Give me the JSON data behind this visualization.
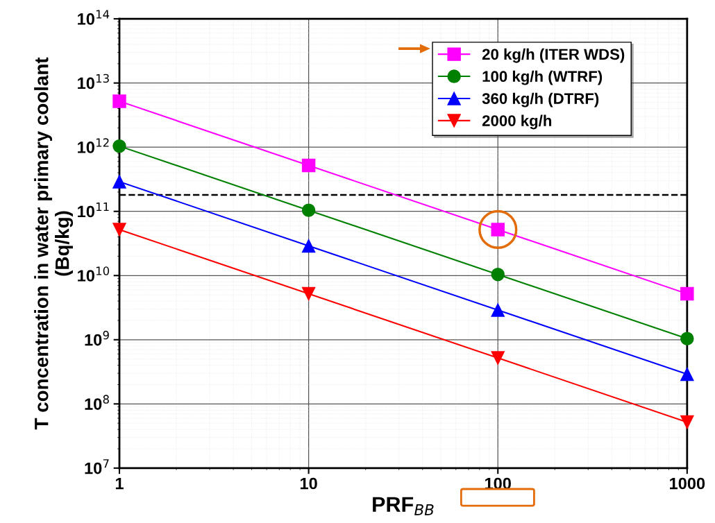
{
  "chart_data": {
    "type": "line",
    "xlabel": "PRF$_{BB}$",
    "ylabel": "T concentration in water primary coolant\n(Bq/kg)",
    "x": [
      1,
      10,
      100,
      1000
    ],
    "log": "xy",
    "xlim": [
      1,
      1000
    ],
    "xticks": [
      1,
      10,
      100,
      1000
    ],
    "ylim": [
      10000000.0,
      100000000000000.0
    ],
    "yticks": [
      {
        "value": 10000000.0,
        "label": "10$^{7}$"
      },
      {
        "value": 100000000.0,
        "label": "10$^{8}$"
      },
      {
        "value": 1000000000.0,
        "label": "10$^{9}$"
      },
      {
        "value": 10000000000.0,
        "label": "10$^{10}$"
      },
      {
        "value": 100000000000.0,
        "label": "10$^{11}$"
      },
      {
        "value": 1000000000000.0,
        "label": "10$^{12}$"
      },
      {
        "value": 10000000000000.0,
        "label": "10$^{13}$"
      },
      {
        "value": 100000000000000.0,
        "label": "10$^{14}$"
      }
    ],
    "series": [
      {
        "name": "20 kg/h (ITER WDS)",
        "color": "#ff00ff",
        "marker": "square",
        "values": [
          5200000000000.0,
          520000000000.0,
          52000000000.0,
          5200000000.0
        ]
      },
      {
        "name": "100 kg/h (WTRF)",
        "color": "#008000",
        "marker": "circle",
        "values": [
          1040000000000.0,
          104000000000.0,
          10400000000.0,
          1040000000.0
        ]
      },
      {
        "name": "360 kg/h (DTRF)",
        "color": "#0000ff",
        "marker": "triangle",
        "values": [
          290000000000.0,
          29000000000.0,
          2900000000.0,
          290000000.0
        ]
      },
      {
        "name": "2000 kg/h",
        "color": "#ff0000",
        "marker": "triangle_down",
        "values": [
          52000000000.0,
          5200000000.0,
          520000000.0,
          52000000.0
        ]
      }
    ],
    "ref_lines": [
      {
        "axis": "y",
        "value": 180000000000.0,
        "color": "#000000",
        "line_style": "dashed"
      }
    ],
    "grid": true,
    "legend": "top right",
    "line_style": "solid"
  }
}
